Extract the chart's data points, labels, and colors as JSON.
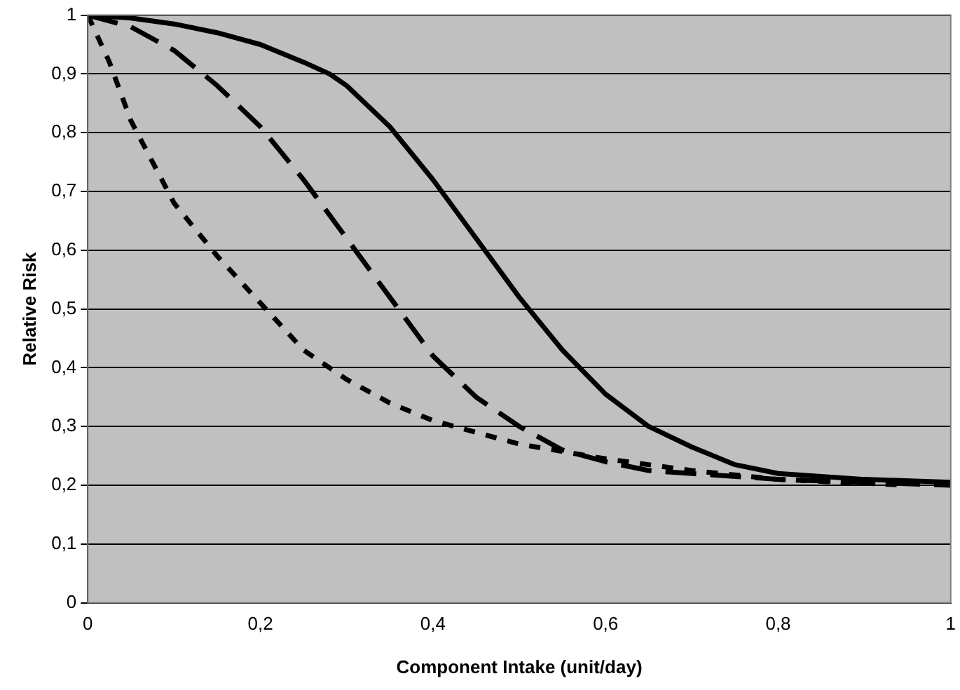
{
  "chart_data": {
    "type": "line",
    "xlabel": "Component Intake (unit/day)",
    "ylabel": "Relative Risk",
    "xlim": [
      0,
      1
    ],
    "ylim": [
      0,
      1
    ],
    "xticks": [
      0,
      {
        "value": 0.2,
        "label": "0,2"
      },
      {
        "value": 0.4,
        "label": "0,4"
      },
      {
        "value": 0.6,
        "label": "0,6"
      },
      {
        "value": 0.8,
        "label": "0,8"
      },
      1
    ],
    "yticks": [
      0,
      {
        "value": 0.1,
        "label": "0,1"
      },
      {
        "value": 0.2,
        "label": "0,2"
      },
      {
        "value": 0.3,
        "label": "0,3"
      },
      {
        "value": 0.4,
        "label": "0,4"
      },
      {
        "value": 0.5,
        "label": "0,5"
      },
      {
        "value": 0.6,
        "label": "0,6"
      },
      {
        "value": 0.7,
        "label": "0,7"
      },
      {
        "value": 0.8,
        "label": "0,8"
      },
      {
        "value": 0.9,
        "label": "0,9"
      },
      1
    ],
    "grid": "y",
    "legend": false,
    "marker": "none",
    "series": [
      {
        "color": "#000000",
        "line_style": "solid",
        "x": [
          0,
          0.05,
          0.1,
          0.15,
          0.2,
          0.25,
          0.28,
          0.3,
          0.35,
          0.4,
          0.45,
          0.5,
          0.55,
          0.6,
          0.65,
          0.7,
          0.75,
          0.8,
          0.9,
          1
        ],
        "values": [
          1,
          0.995,
          0.985,
          0.97,
          0.95,
          0.92,
          0.9,
          0.88,
          0.81,
          0.72,
          0.62,
          0.52,
          0.43,
          0.355,
          0.3,
          0.265,
          0.235,
          0.22,
          0.21,
          0.205
        ]
      },
      {
        "color": "#000000",
        "line_style": "dashed",
        "x": [
          0,
          0.05,
          0.1,
          0.15,
          0.2,
          0.25,
          0.3,
          0.35,
          0.4,
          0.45,
          0.5,
          0.55,
          0.6,
          0.65,
          0.7,
          0.8,
          0.9,
          1
        ],
        "values": [
          1,
          0.98,
          0.94,
          0.88,
          0.81,
          0.72,
          0.62,
          0.52,
          0.42,
          0.35,
          0.3,
          0.26,
          0.24,
          0.225,
          0.22,
          0.21,
          0.205,
          0.2
        ]
      },
      {
        "color": "#000000",
        "line_style": "dotted",
        "x": [
          0,
          0.025,
          0.05,
          0.075,
          0.1,
          0.15,
          0.2,
          0.25,
          0.3,
          0.35,
          0.4,
          0.5,
          0.6,
          0.7,
          0.8,
          0.95
        ],
        "values": [
          1,
          0.92,
          0.82,
          0.75,
          0.68,
          0.59,
          0.51,
          0.43,
          0.38,
          0.34,
          0.31,
          0.27,
          0.245,
          0.225,
          0.21,
          0.2
        ]
      }
    ]
  }
}
